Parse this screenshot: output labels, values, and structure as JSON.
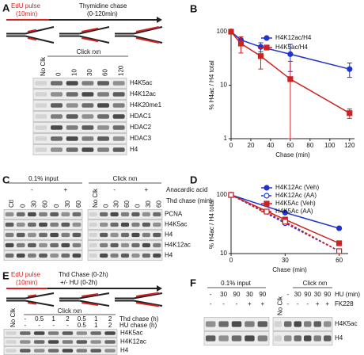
{
  "panels": {
    "A": {
      "label": "A",
      "pulse": "EdU pulse",
      "pulse_time": "(10min)",
      "chase": "Thymidine chase",
      "chase_time": "(0-120min)",
      "click": "Click rxn",
      "lanes": [
        "No Clk",
        "0",
        "10",
        "30",
        "60",
        "120"
      ],
      "rows": [
        "H4K5ac",
        "H4K12ac",
        "H4K20me1",
        "HDAC1",
        "HDAC2",
        "HDAC3",
        "H4"
      ]
    },
    "C": {
      "label": "C",
      "input": "0.1% input",
      "click": "Click rxn",
      "aa_label": "Anacardic acid",
      "chase_label": "Thd chase (min)",
      "aa_left": [
        "-",
        "+"
      ],
      "aa_right": [
        "-",
        "+"
      ],
      "lanes_left": [
        "Ctl",
        "0",
        "30",
        "60",
        "0",
        "30",
        "60"
      ],
      "lanes_right": [
        "No Clk",
        "0",
        "30",
        "60",
        "0",
        "30",
        "60"
      ],
      "rows": [
        "PCNA",
        "H4K5ac",
        "H4",
        "H4K12ac",
        "H4"
      ]
    },
    "E": {
      "label": "E",
      "pulse": "EdU pulse",
      "pulse_time": "(10min)",
      "chase": "Thd Chase (0-2h)",
      "chase_hu": "+/- HU (0-2h)",
      "click": "Click rxn",
      "no_clk": "No Clk",
      "thd": [
        "-",
        "0.5",
        "1",
        "2",
        "0.5",
        "1",
        "2"
      ],
      "hu": [
        "-",
        "-",
        "-",
        "-",
        "0.5",
        "1",
        "2"
      ],
      "thd_label": "Thd chase (h)",
      "hu_label": "HU chase (h)",
      "rows": [
        "H4K5ac",
        "H4K12ac",
        "H4"
      ]
    },
    "F": {
      "label": "F",
      "input": "0.1% input",
      "click": "Click rxn",
      "no_clk": "No Clk",
      "hu_left": [
        "-",
        "30",
        "90",
        "30",
        "90"
      ],
      "fk_left": [
        "-",
        "-",
        "-",
        "+",
        "+"
      ],
      "hu_right": [
        "-",
        "30",
        "90",
        "30",
        "90"
      ],
      "fk_right": [
        "-",
        "-",
        "-",
        "+",
        "+"
      ],
      "hu_label": "HU (min)",
      "fk_label": "FK228",
      "rows": [
        "H4K5ac",
        "H4"
      ]
    }
  },
  "chart_data": [
    {
      "type": "line",
      "label": "B",
      "xlabel": "Chase (min)",
      "ylabel": "% H4ac / H4 total",
      "log_y": true,
      "x": [
        0,
        10,
        30,
        60,
        120
      ],
      "xlim": [
        0,
        125
      ],
      "xticks": [
        0,
        20,
        40,
        60,
        80,
        100,
        120
      ],
      "ylim": [
        1,
        100
      ],
      "yticks": [
        1,
        10,
        100
      ],
      "series": [
        {
          "name": "H4K12ac/H4",
          "color": "#2233cc",
          "marker": "circle",
          "dashed": false,
          "values": [
            100,
            70,
            52,
            38,
            20
          ],
          "errors": [
            0,
            10,
            10,
            20,
            6
          ]
        },
        {
          "name": "H4K5ac/H4",
          "color": "#cc2222",
          "marker": "square",
          "dashed": false,
          "values": [
            100,
            60,
            35,
            13,
            3
          ],
          "errors": [
            0,
            20,
            15,
            15,
            0.6
          ]
        }
      ]
    },
    {
      "type": "line",
      "label": "D",
      "xlabel": "Chase (min)",
      "ylabel": "% H4ac / H4 total",
      "log_y": true,
      "x": [
        0,
        30,
        60
      ],
      "xlim": [
        0,
        65
      ],
      "xticks": [
        0,
        30,
        60
      ],
      "ylim": [
        10,
        100
      ],
      "yticks": [
        10,
        100
      ],
      "series": [
        {
          "name": "H4K12Ac (Veh)",
          "color": "#2233cc",
          "marker": "circle",
          "dashed": false,
          "values": [
            100,
            50,
            27
          ]
        },
        {
          "name": "H4K12Ac (AA)",
          "color": "#2233cc",
          "marker": "open-circle",
          "dashed": true,
          "values": [
            100,
            33,
            11
          ]
        },
        {
          "name": "H4K5Ac (Veh)",
          "color": "#cc2222",
          "marker": "square",
          "dashed": false,
          "values": [
            100,
            38,
            15
          ]
        },
        {
          "name": "H4K5Ac (AA)",
          "color": "#cc2222",
          "marker": "open-square",
          "dashed": true,
          "values": [
            100,
            35,
            11
          ]
        }
      ]
    }
  ]
}
